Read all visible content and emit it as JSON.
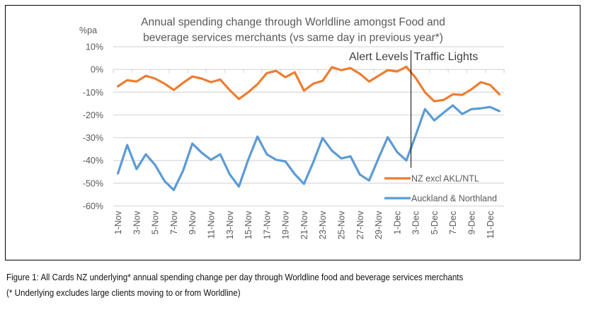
{
  "chart_data": {
    "type": "line",
    "title": "Annual spending change through Worldline amongst Food and beverage services merchants (vs same day in previous year*)",
    "title_lines": [
      "Annual spending change through Worldline amongst Food and",
      "beverage services merchants (vs same day in previous year*)"
    ],
    "ylabel": "%pa",
    "xlabel": "",
    "ylim": [
      -60,
      10
    ],
    "yticks": [
      10,
      0,
      -10,
      -20,
      -30,
      -40,
      -50,
      -60
    ],
    "ytick_labels": [
      "10%",
      "0%",
      "-10%",
      "-20%",
      "-30%",
      "-40%",
      "-50%",
      "-60%"
    ],
    "grid": true,
    "legend_position": "lower-right",
    "categories": [
      "1-Nov",
      "2-Nov",
      "3-Nov",
      "4-Nov",
      "5-Nov",
      "6-Nov",
      "7-Nov",
      "8-Nov",
      "9-Nov",
      "10-Nov",
      "11-Nov",
      "12-Nov",
      "13-Nov",
      "14-Nov",
      "15-Nov",
      "16-Nov",
      "17-Nov",
      "18-Nov",
      "19-Nov",
      "20-Nov",
      "21-Nov",
      "22-Nov",
      "23-Nov",
      "24-Nov",
      "25-Nov",
      "26-Nov",
      "27-Nov",
      "28-Nov",
      "29-Nov",
      "30-Nov",
      "1-Dec",
      "2-Dec",
      "3-Dec",
      "4-Dec",
      "5-Dec",
      "6-Dec",
      "7-Dec",
      "8-Dec",
      "9-Dec",
      "10-Dec",
      "11-Dec",
      "12-Dec"
    ],
    "xtick_labels": [
      "1-Nov",
      "3-Nov",
      "5-Nov",
      "7-Nov",
      "9-Nov",
      "11-Nov",
      "13-Nov",
      "15-Nov",
      "17-Nov",
      "19-Nov",
      "21-Nov",
      "23-Nov",
      "25-Nov",
      "27-Nov",
      "29-Nov",
      "1-Dec",
      "3-Dec",
      "5-Dec",
      "7-Dec",
      "9-Dec",
      "11-Dec"
    ],
    "series": [
      {
        "name": "NZ excl AKL/NTL",
        "color": "#ED7D31",
        "values": [
          -7.4,
          -4.7,
          -5.3,
          -2.8,
          -4.0,
          -6.2,
          -9.0,
          -5.9,
          -3.1,
          -4.0,
          -5.6,
          -4.4,
          -9.0,
          -13.0,
          -10.0,
          -6.5,
          -1.6,
          -0.6,
          -3.4,
          -1.2,
          -9.3,
          -6.2,
          -5.0,
          1.0,
          -0.3,
          0.6,
          -1.9,
          -5.3,
          -2.8,
          -0.3,
          -0.9,
          1.2,
          -3.7,
          -10.0,
          -14.0,
          -13.4,
          -10.9,
          -11.2,
          -8.7,
          -5.6,
          -6.8,
          -10.9
        ]
      },
      {
        "name": "Auckland & Northland",
        "color": "#5B9BD5",
        "values": [
          -45.7,
          -33.2,
          -43.8,
          -37.3,
          -42.0,
          -49.0,
          -53.0,
          -44.5,
          -32.6,
          -36.6,
          -39.7,
          -37.3,
          -46.0,
          -51.5,
          -39.7,
          -29.5,
          -37.3,
          -39.7,
          -40.4,
          -46.0,
          -50.3,
          -40.7,
          -30.1,
          -35.7,
          -39.1,
          -38.2,
          -46.2,
          -48.8,
          -39.1,
          -29.8,
          -36.3,
          -40.0,
          -29.0,
          -17.4,
          -22.4,
          -19.0,
          -15.8,
          -19.6,
          -17.4,
          -17.1,
          -16.5,
          -18.3
        ]
      }
    ],
    "annotations": {
      "divider_between": [
        "2-Dec",
        "3-Dec"
      ],
      "left_label": "Alert Levels",
      "right_label": "Traffic Lights"
    }
  },
  "caption": {
    "line1": "Figure 1: All Cards NZ underlying* annual spending change per day through Worldline food and beverage services merchants",
    "line2": "(* Underlying excludes large clients moving to or from Worldline)"
  }
}
